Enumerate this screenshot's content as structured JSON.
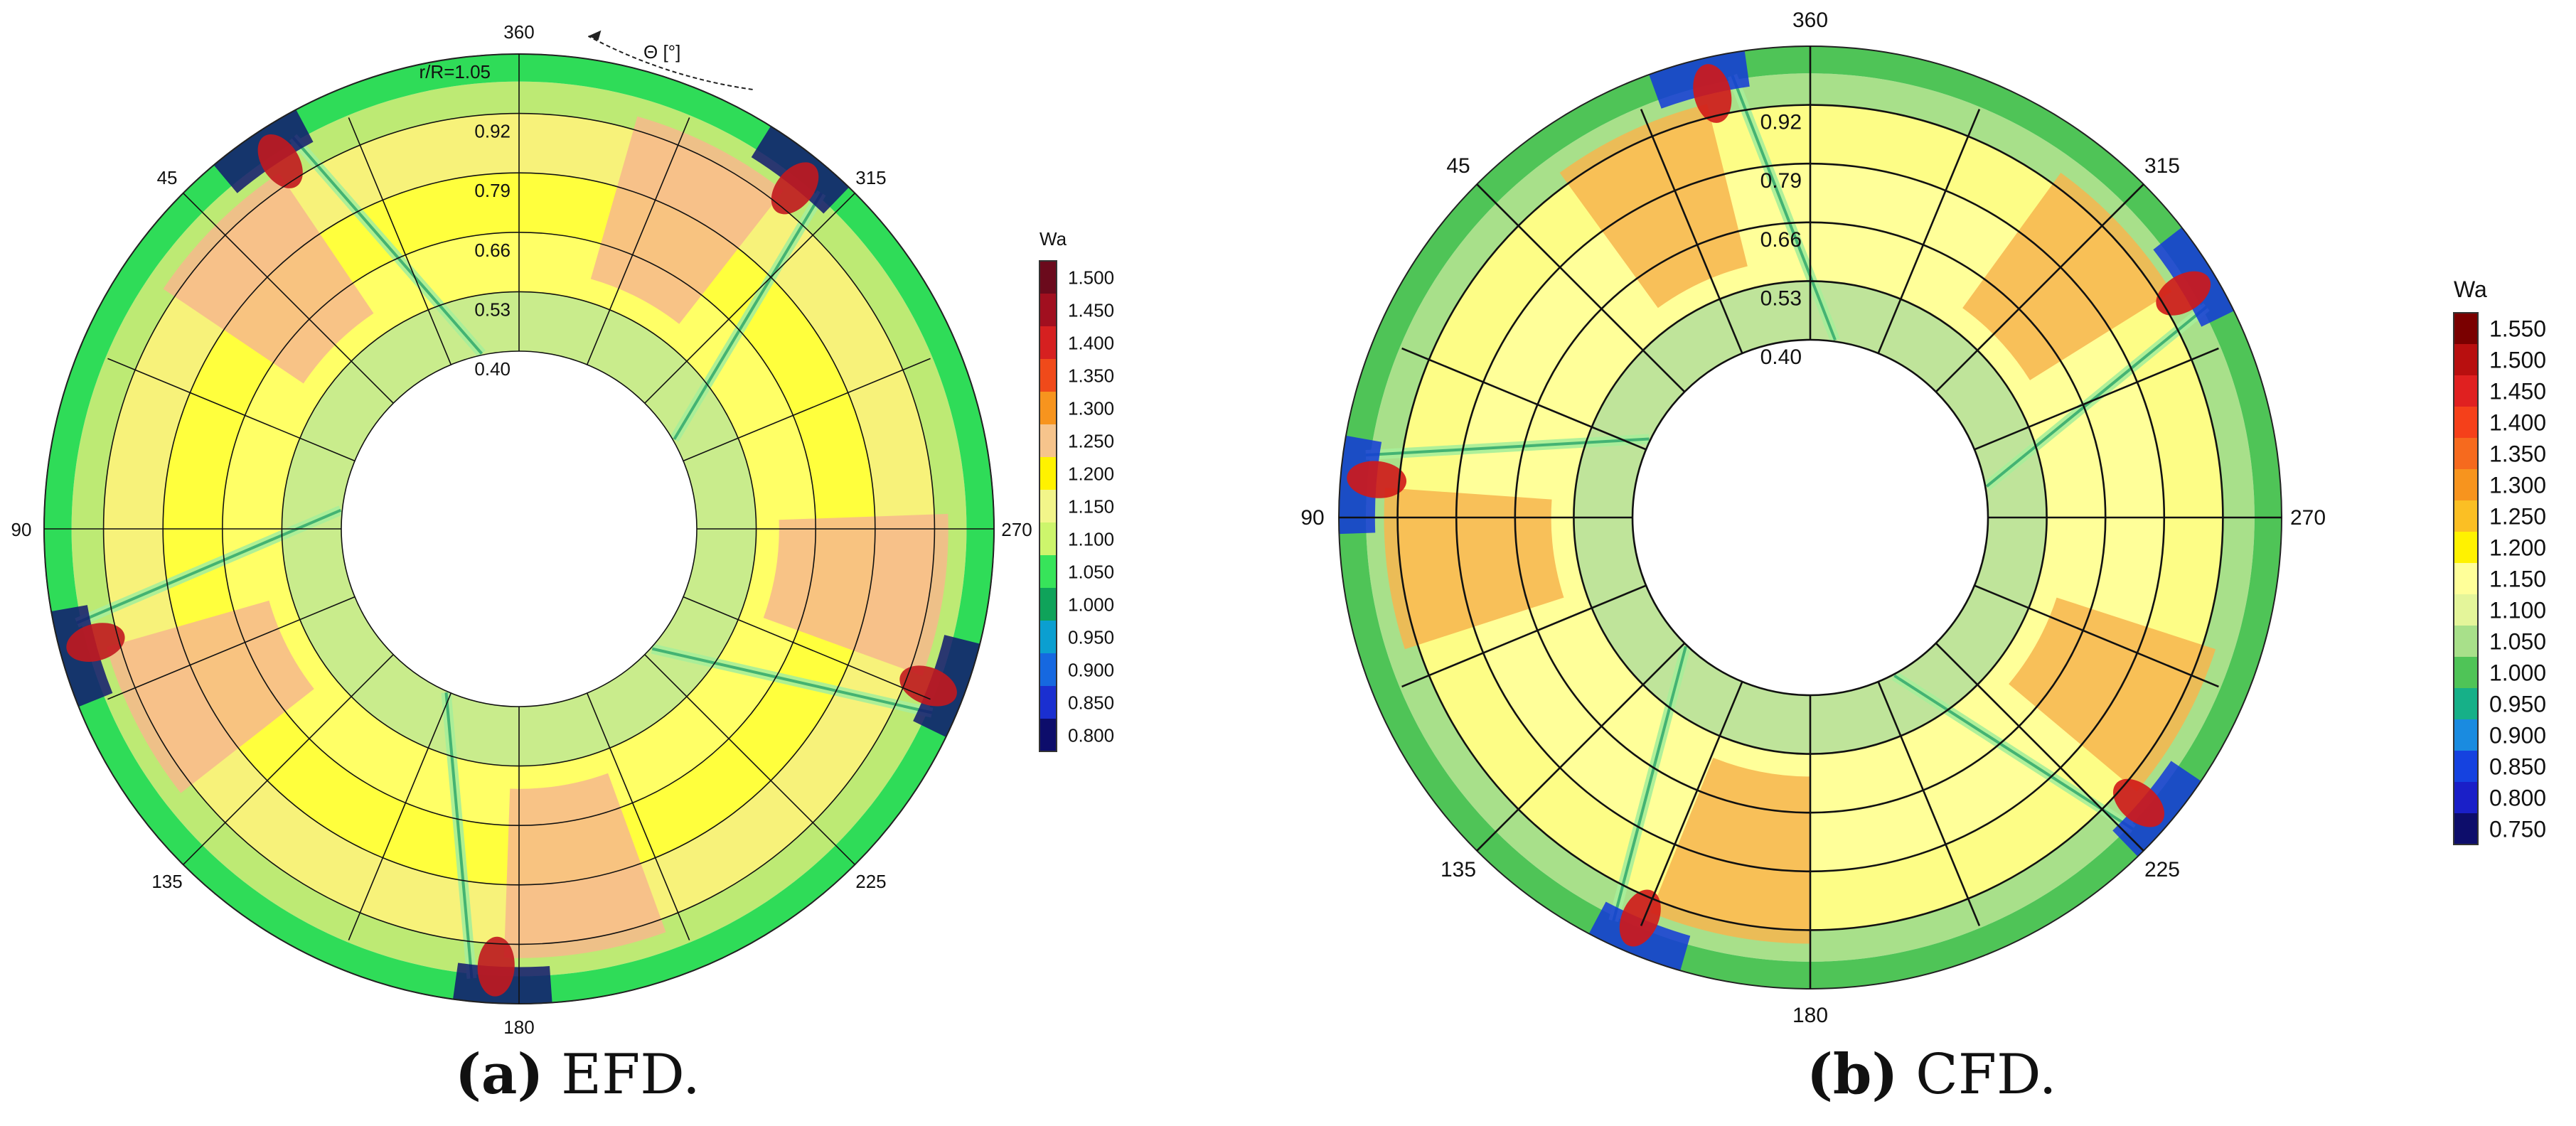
{
  "figure": {
    "panels": [
      {
        "id": "a",
        "caption_letter": "(a)",
        "caption_text": " EFD."
      },
      {
        "id": "b",
        "caption_letter": "(b)",
        "caption_text": " CFD."
      }
    ]
  },
  "chart_data": [
    {
      "type": "heatmap",
      "subtype": "polar-contour",
      "panel": "EFD",
      "title": "",
      "colorbar_title": "Wa",
      "colorbar_levels": [
        "1.500",
        "1.450",
        "1.400",
        "1.350",
        "1.300",
        "1.250",
        "1.200",
        "1.150",
        "1.100",
        "1.050",
        "1.000",
        "0.950",
        "0.900",
        "0.850",
        "0.800"
      ],
      "colorbar_colors": [
        "#6b0a1c",
        "#a10f1f",
        "#d62020",
        "#f04a1a",
        "#f7941e",
        "#f6c48c",
        "#fff200",
        "#f2f58a",
        "#cdf56c",
        "#37e45a",
        "#0fa35a",
        "#0b9fd0",
        "#1668e0",
        "#1a2fd0",
        "#0d0d6b"
      ],
      "radial_label_prefix": "r/R=",
      "radial_ticks": [
        "0.40",
        "0.53",
        "0.66",
        "0.79",
        "0.92",
        "1.05"
      ],
      "angle_ticks": [
        "360",
        "45",
        "90",
        "135",
        "180",
        "225",
        "270",
        "315"
      ],
      "theta_label": "Θ [°]",
      "blade_tip_angles": [
        30,
        102,
        174,
        246,
        318
      ],
      "ring_fill_colors": [
        "#c9ec8c",
        "#ffff66",
        "#ffff3d",
        "#f7f27a",
        "#bdea74",
        "#2fdc58"
      ],
      "blade_patch_color": "#f7b98c",
      "tip_high_color": "#c1181f",
      "tip_low_color": "#101870"
    },
    {
      "type": "heatmap",
      "subtype": "polar-contour",
      "panel": "CFD",
      "title": "",
      "colorbar_title": "Wa",
      "colorbar_levels": [
        "1.550",
        "1.500",
        "1.450",
        "1.400",
        "1.350",
        "1.300",
        "1.250",
        "1.200",
        "1.150",
        "1.100",
        "1.050",
        "1.000",
        "0.950",
        "0.900",
        "0.850",
        "0.800",
        "0.750"
      ],
      "colorbar_colors": [
        "#7a0000",
        "#b80f0f",
        "#e02020",
        "#f5401a",
        "#f66a1e",
        "#f7941e",
        "#fbbf24",
        "#fff200",
        "#ffff99",
        "#e4f59a",
        "#a8e08a",
        "#4fc457",
        "#16b088",
        "#1a8be0",
        "#1542e0",
        "#1a1fc8",
        "#0d0d6b"
      ],
      "radial_ticks": [
        "0.40",
        "0.53",
        "0.66",
        "0.79",
        "0.92"
      ],
      "radial_label_prefix": "",
      "angle_ticks": [
        "360",
        "45",
        "90",
        "135",
        "180",
        "225",
        "270",
        "315"
      ],
      "blade_tip_angles": [
        10,
        82,
        154,
        226,
        298
      ],
      "ring_fill_colors": [
        "#bfe49a",
        "#ffff99",
        "#ffff99",
        "#fdfd86",
        "#a8e08a",
        "#4fc457"
      ],
      "blade_patch_color": "#f7b54e",
      "tip_high_color": "#d01818",
      "tip_low_color": "#1238d8"
    }
  ]
}
